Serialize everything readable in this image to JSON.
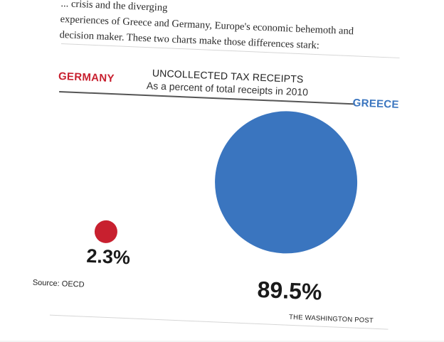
{
  "article": {
    "lines": [
      "... crisis and the diverging",
      "experiences of Greece and Germany, Europe's economic behemoth and",
      "decision maker. These two charts make those differences stark:"
    ]
  },
  "chart_data": {
    "type": "bubble",
    "title": "UNCOLLECTED TAX RECEIPTS",
    "subtitle": "As a percent of total receipts in 2010",
    "series": [
      {
        "name": "GERMANY",
        "value": 2.3,
        "label": "2.3%",
        "color": "#c8202f"
      },
      {
        "name": "GREECE",
        "value": 89.5,
        "label": "89.5%",
        "color": "#3a75bf"
      }
    ],
    "unit": "%",
    "source": "Source: OECD",
    "credit": "THE WASHINGTON POST"
  }
}
